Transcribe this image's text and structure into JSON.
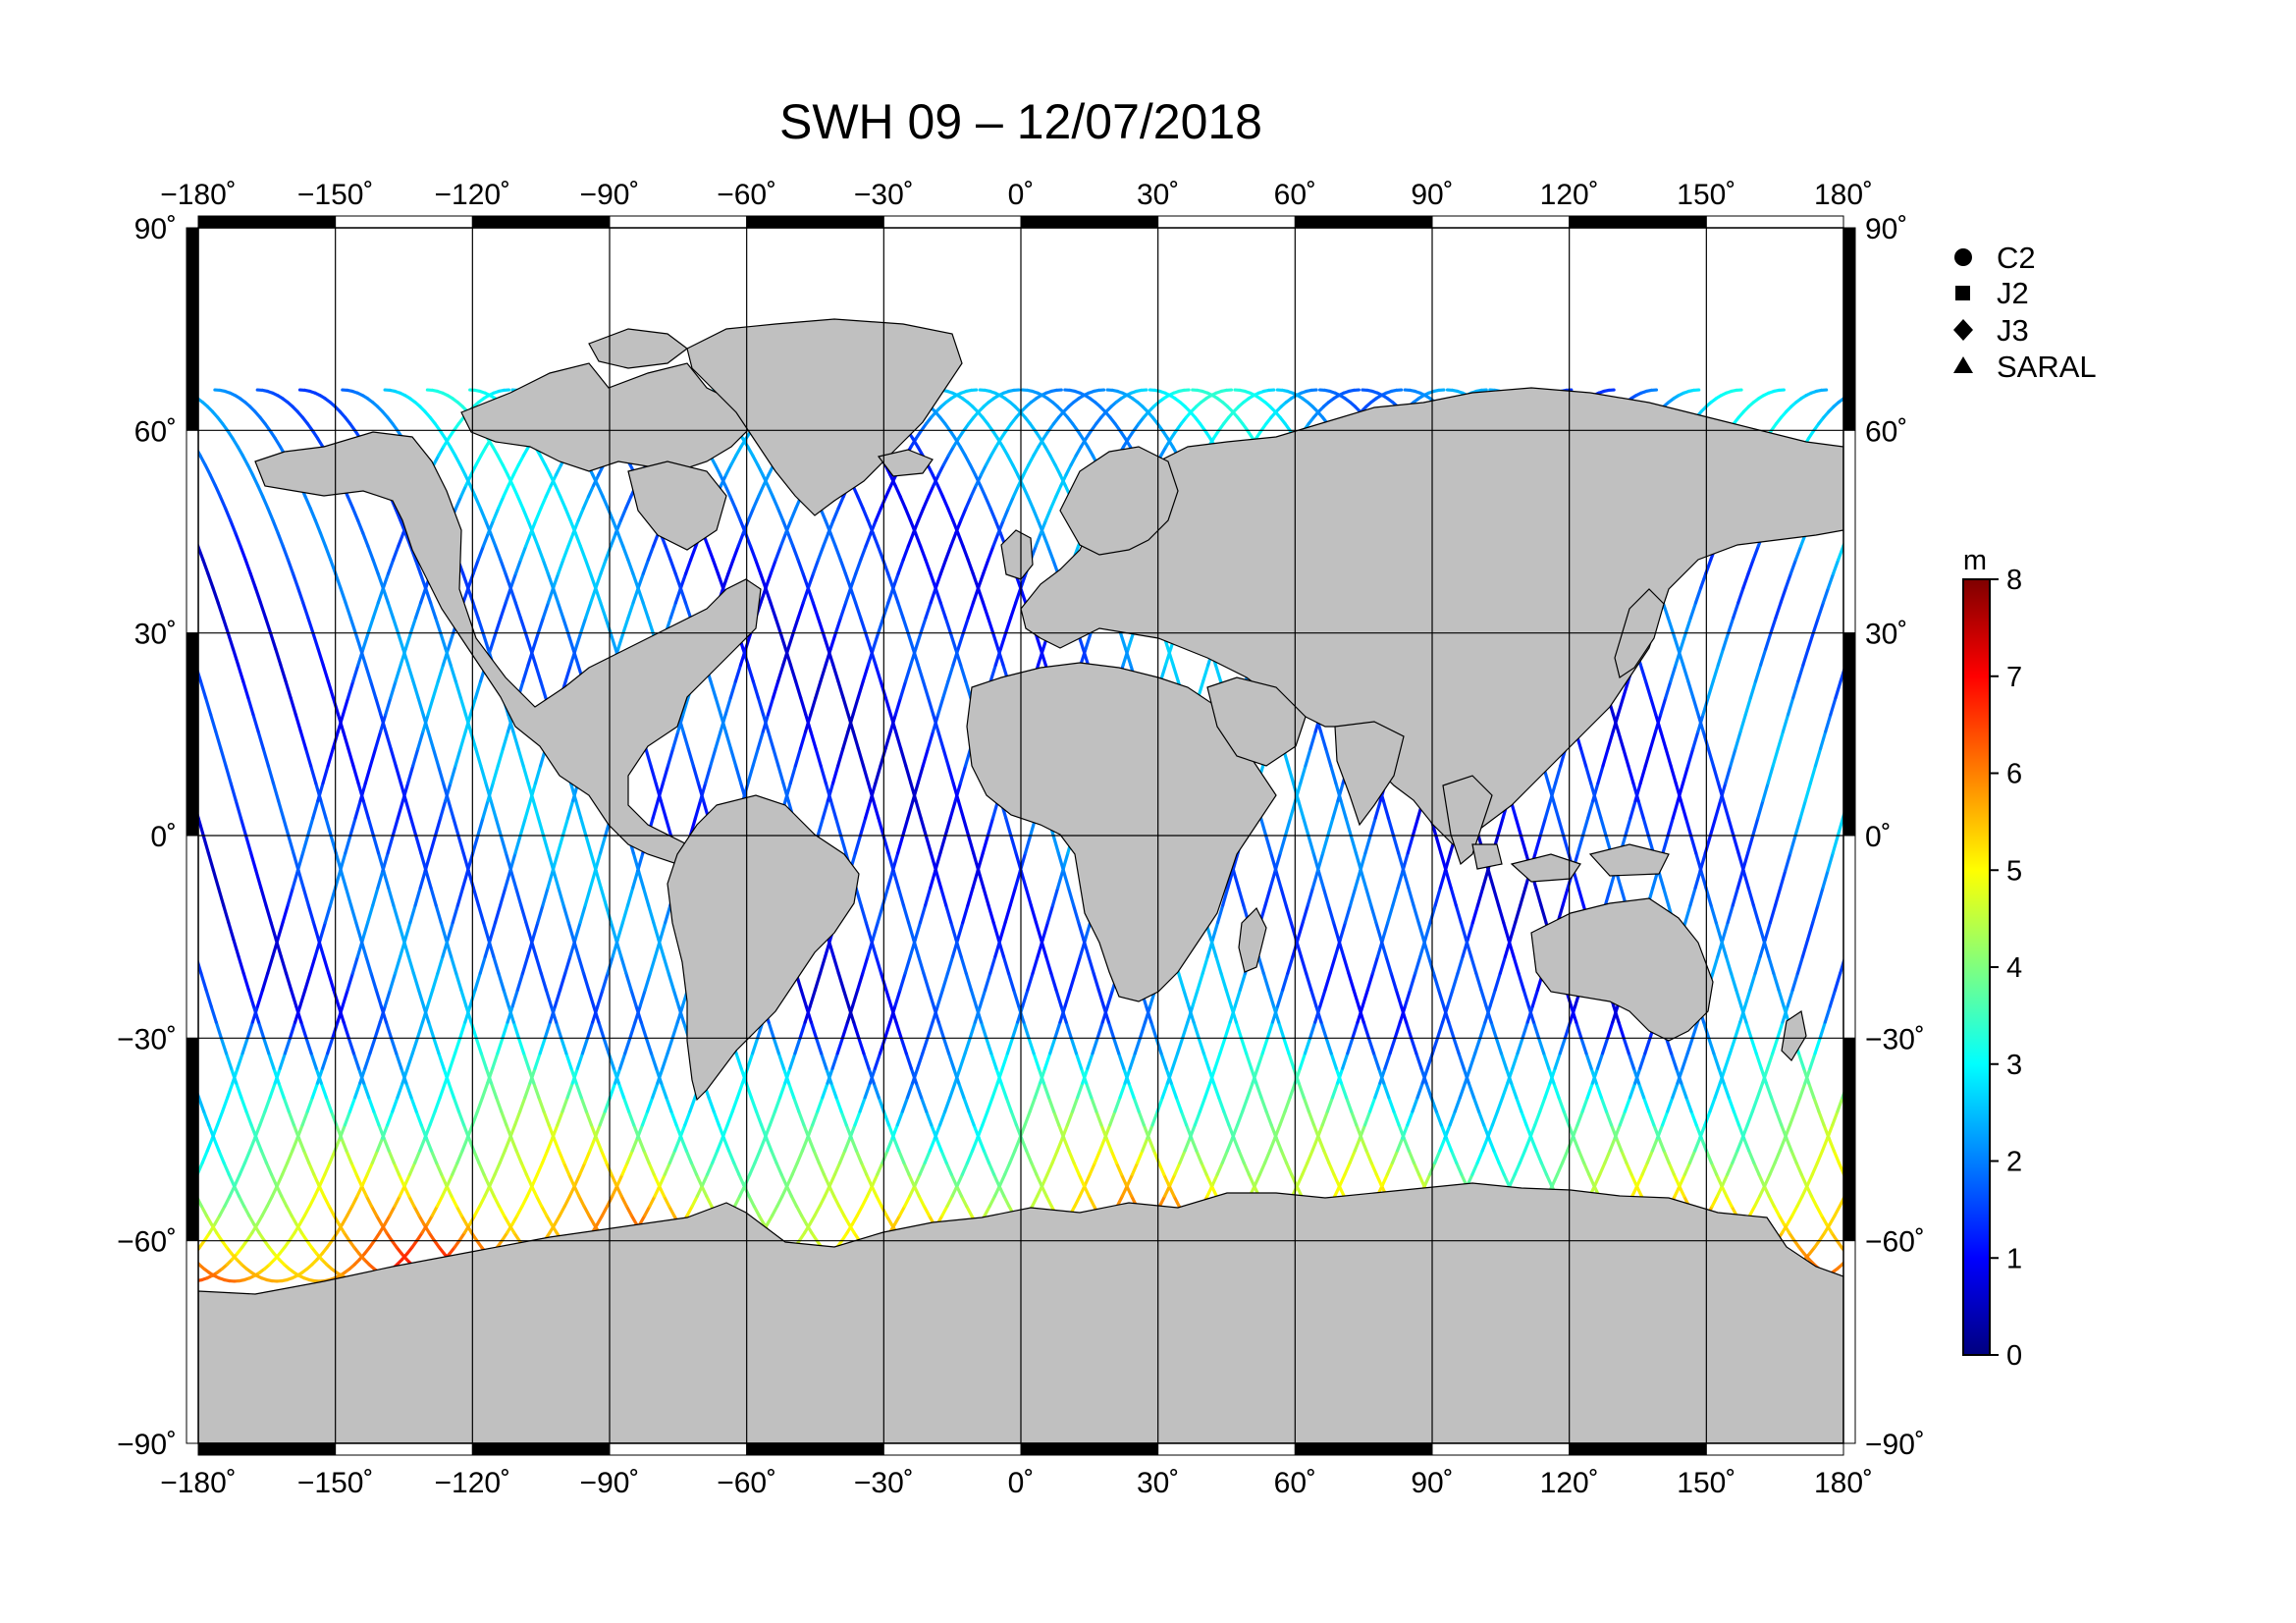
{
  "title": "SWH 09 – 12/07/2018",
  "map": {
    "projection": "equirectangular",
    "lon_range": [
      -180,
      180
    ],
    "lat_range": [
      -90,
      90
    ],
    "lon_ticks": [
      "−180˚",
      "−150˚",
      "−120˚",
      "−90˚",
      "−60˚",
      "−30˚",
      "0˚",
      "30˚",
      "60˚",
      "90˚",
      "120˚",
      "150˚",
      "180˚"
    ],
    "lat_ticks": [
      "90˚",
      "60˚",
      "30˚",
      "0˚",
      "−30˚",
      "−60˚",
      "−90˚"
    ],
    "land_color": "#c0c0c0",
    "ocean_color": "#ffffff",
    "grid": true
  },
  "legend": {
    "items": [
      {
        "label": "C2",
        "icon": "circle-marker-icon"
      },
      {
        "label": "J2",
        "icon": "square-marker-icon"
      },
      {
        "label": "J3",
        "icon": "diamond-marker-icon"
      },
      {
        "label": "SARAL",
        "icon": "triangle-marker-icon"
      }
    ]
  },
  "colorbar": {
    "unit": "m",
    "min": 0,
    "max": 8,
    "ticks": [
      "0",
      "1",
      "2",
      "3",
      "4",
      "5",
      "6",
      "7",
      "8"
    ],
    "colormap": "jet"
  }
}
